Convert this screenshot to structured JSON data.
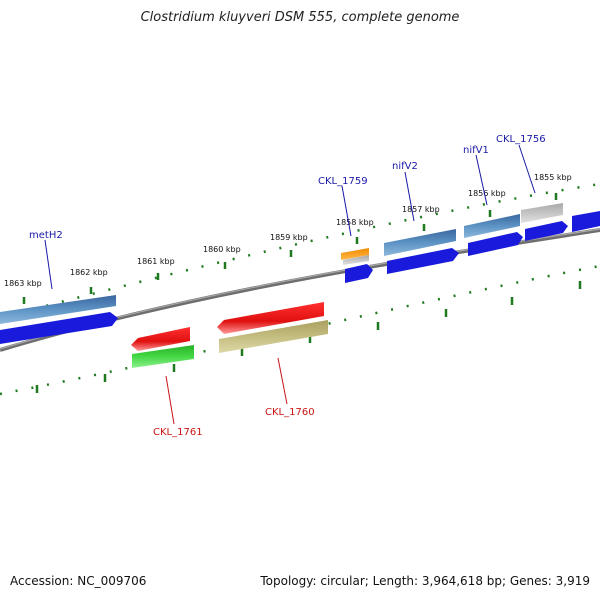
{
  "title": "Clostridium kluyveri DSM 555, complete genome",
  "accession": "Accession: NC_009706",
  "topology": "Topology: circular; Length: 3,964,618 bp; Genes: 3,919",
  "ticks": [
    "1863 kbp",
    "1862 kbp",
    "1861 kbp",
    "1860 kbp",
    "1859 kbp",
    "1858 kbp",
    "1857 kbp",
    "1856 kbp",
    "1855 kbp"
  ],
  "genes_top": [
    "metH2",
    "CKL_1759",
    "nifV2",
    "nifV1",
    "CKL_1756"
  ],
  "genes_bottom": [
    "CKL_1761",
    "CKL_1760"
  ],
  "colors": {
    "forward_cds": "#1a1adc",
    "reverse_cds": "#e01010",
    "forward_gene": "#4f86b6",
    "reverse_gene_green": "#3ccb3c",
    "reverse_gene_olive": "#b8b070",
    "backbone": "#7a7a7a",
    "tick": "#1f7a1f",
    "forward_label": "#1a1aa8",
    "reverse_label": "#c81414"
  }
}
